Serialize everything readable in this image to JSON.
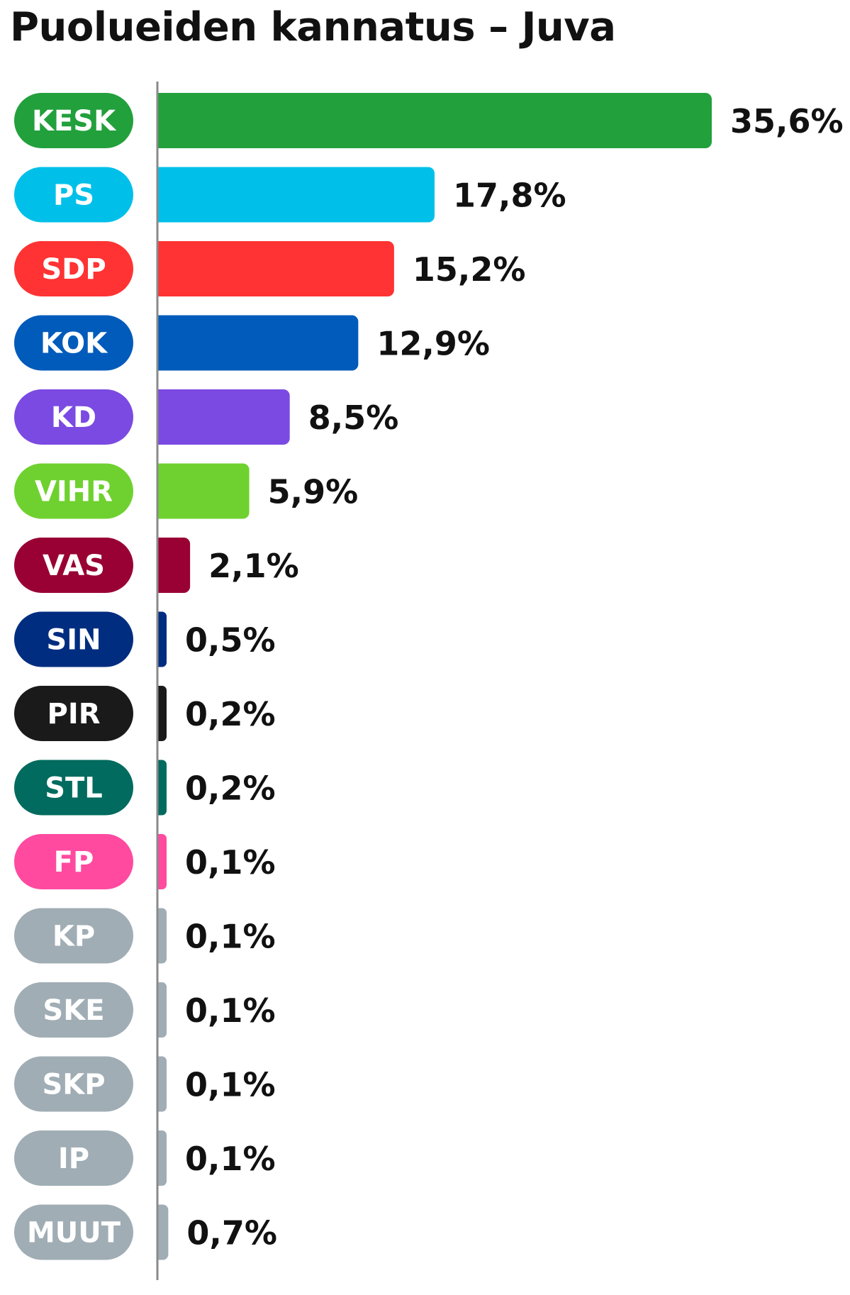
{
  "title": "Puolueiden kannatus – Juva",
  "chart_data": {
    "type": "bar",
    "orientation": "horizontal",
    "title": "Puolueiden kannatus – Juva",
    "unit": "%",
    "categories": [
      "KESK",
      "PS",
      "SDP",
      "KOK",
      "KD",
      "VIHR",
      "VAS",
      "SIN",
      "PIR",
      "STL",
      "FP",
      "KP",
      "SKE",
      "SKP",
      "IP",
      "MUUT"
    ],
    "values": [
      35.6,
      17.8,
      15.2,
      12.9,
      8.5,
      5.9,
      2.1,
      0.5,
      0.2,
      0.2,
      0.1,
      0.1,
      0.1,
      0.1,
      0.1,
      0.7
    ],
    "value_labels": [
      "35,6%",
      "17,8%",
      "15,2%",
      "12,9%",
      "8,5%",
      "5,9%",
      "2,1%",
      "0,5%",
      "0,2%",
      "0,2%",
      "0,1%",
      "0,1%",
      "0,1%",
      "0,1%",
      "0,1%",
      "0,7%"
    ],
    "colors": [
      "#22a03c",
      "#00c0ea",
      "#ff3333",
      "#005bbb",
      "#7b4ae2",
      "#6fd12f",
      "#990033",
      "#002d80",
      "#1a1a1a",
      "#006b5e",
      "#ff4aa0",
      "#a0adb5",
      "#a0adb5",
      "#a0adb5",
      "#a0adb5",
      "#a0adb5"
    ],
    "xlim": [
      0,
      35.6
    ],
    "grid": false,
    "legend": "none"
  }
}
